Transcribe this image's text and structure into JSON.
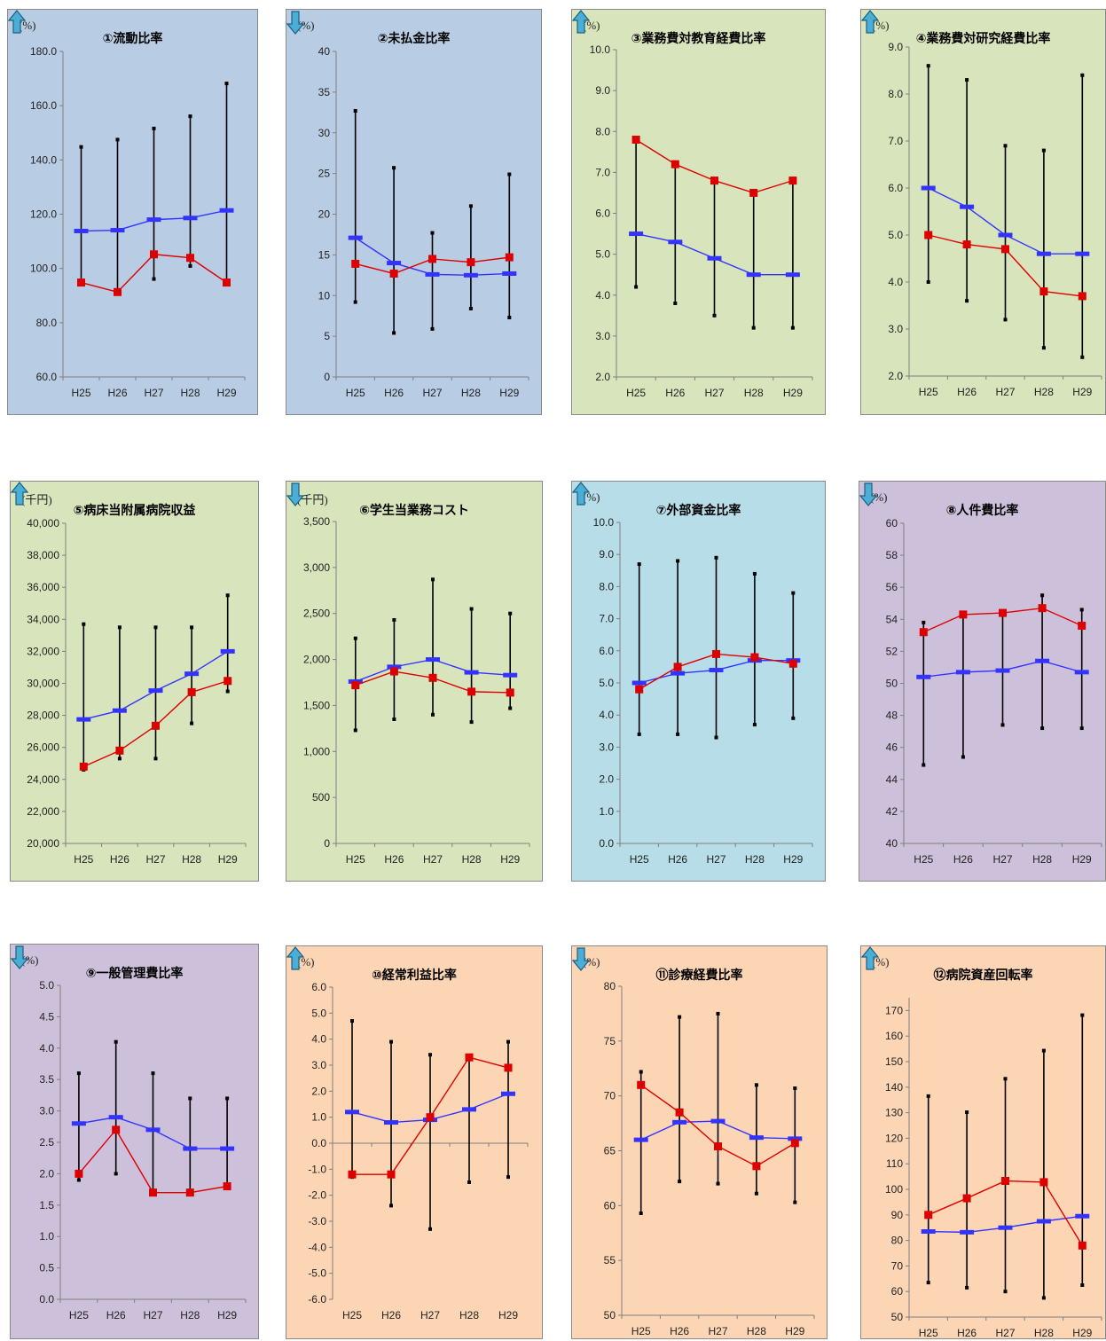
{
  "colors": {
    "blue_panel": "#b8cce4",
    "green_panel": "#d8e4bc",
    "cyan_panel": "#b7dde8",
    "purple_panel": "#ccc0da",
    "orange_panel": "#fcd5b4",
    "red_series": "#dd0000",
    "blue_series": "#3333ff",
    "range_line": "#000000",
    "arrow_fill": "#4aaed6"
  },
  "chart_data": [
    {
      "type": "line",
      "title": "①流動比率",
      "unit": "(%)",
      "arrow": "up",
      "bg": "blue",
      "categories": [
        "H25",
        "H26",
        "H27",
        "H28",
        "H29"
      ],
      "ylim": [
        60,
        180
      ],
      "ticks": [
        60,
        80,
        100,
        120,
        140,
        160,
        180
      ],
      "decimals": 1,
      "series": [
        {
          "color": "red",
          "values": [
            94.8,
            91.3,
            105.2,
            103.9,
            94.8
          ]
        },
        {
          "color": "blue",
          "values": [
            113.8,
            114.1,
            118.0,
            118.6,
            121.4
          ]
        }
      ],
      "ranges": [
        [
          94.8,
          144.8
        ],
        [
          91.3,
          147.5
        ],
        [
          96.1,
          151.6
        ],
        [
          100.9,
          156.1
        ],
        [
          94.8,
          168.2
        ]
      ]
    },
    {
      "type": "line",
      "title": "②未払金比率",
      "unit": "(%)",
      "arrow": "down",
      "bg": "blue",
      "categories": [
        "H25",
        "H26",
        "H27",
        "H28",
        "H29"
      ],
      "ylim": [
        0,
        40
      ],
      "ticks": [
        0,
        5,
        10,
        15,
        20,
        25,
        30,
        35,
        40
      ],
      "decimals": 0,
      "series": [
        {
          "color": "red",
          "values": [
            13.9,
            12.7,
            14.5,
            14.1,
            14.7
          ]
        },
        {
          "color": "blue",
          "values": [
            17.1,
            14.0,
            12.6,
            12.5,
            12.7
          ]
        }
      ],
      "ranges": [
        [
          9.2,
          32.7
        ],
        [
          5.4,
          25.7
        ],
        [
          5.9,
          17.7
        ],
        [
          8.4,
          21.0
        ],
        [
          7.3,
          24.9
        ]
      ]
    },
    {
      "type": "line",
      "title": "③業務費対教育経費比率",
      "unit": "(%)",
      "arrow": "up",
      "bg": "green",
      "categories": [
        "H25",
        "H26",
        "H27",
        "H28",
        "H29"
      ],
      "ylim": [
        2,
        10
      ],
      "ticks": [
        2,
        3,
        4,
        5,
        6,
        7,
        8,
        9,
        10
      ],
      "decimals": 1,
      "series": [
        {
          "color": "red",
          "values": [
            7.8,
            7.2,
            6.8,
            6.5,
            6.8
          ]
        },
        {
          "color": "blue",
          "values": [
            5.5,
            5.3,
            4.9,
            4.5,
            4.5
          ]
        }
      ],
      "ranges": [
        [
          4.2,
          7.8
        ],
        [
          3.8,
          7.2
        ],
        [
          3.5,
          6.8
        ],
        [
          3.2,
          6.5
        ],
        [
          3.2,
          6.8
        ]
      ]
    },
    {
      "type": "line",
      "title": "④業務費対研究経費比率",
      "unit": "(%)",
      "arrow": "up",
      "bg": "green",
      "categories": [
        "H25",
        "H26",
        "H27",
        "H28",
        "H29"
      ],
      "ylim": [
        2,
        9
      ],
      "ticks": [
        2,
        3,
        4,
        5,
        6,
        7,
        8,
        9
      ],
      "decimals": 1,
      "series": [
        {
          "color": "red",
          "values": [
            5.0,
            4.8,
            4.7,
            3.8,
            3.7
          ]
        },
        {
          "color": "blue",
          "values": [
            6.0,
            5.6,
            5.0,
            4.6,
            4.6
          ]
        }
      ],
      "ranges": [
        [
          4.0,
          8.6
        ],
        [
          3.6,
          8.3
        ],
        [
          3.2,
          6.9
        ],
        [
          2.6,
          6.8
        ],
        [
          2.4,
          8.4
        ]
      ]
    },
    {
      "type": "line",
      "title": "⑤病床当附属病院収益",
      "unit": "(千円)",
      "arrow": "up",
      "bg": "green",
      "categories": [
        "H25",
        "H26",
        "H27",
        "H28",
        "H29"
      ],
      "ylim": [
        20000,
        40000
      ],
      "ticks": [
        20000,
        22000,
        24000,
        26000,
        28000,
        30000,
        32000,
        34000,
        36000,
        38000,
        40000
      ],
      "decimals": 0,
      "series": [
        {
          "color": "red",
          "values": [
            24800,
            25800,
            27350,
            29450,
            30150
          ]
        },
        {
          "color": "blue",
          "values": [
            27750,
            28300,
            29550,
            30600,
            32000
          ]
        }
      ],
      "ranges": [
        [
          24600,
          33700
        ],
        [
          25300,
          33500
        ],
        [
          25300,
          33500
        ],
        [
          27500,
          33500
        ],
        [
          29500,
          35500
        ]
      ]
    },
    {
      "type": "line",
      "title": "⑥学生当業務コスト",
      "unit": "(千円)",
      "arrow": "down",
      "bg": "green",
      "categories": [
        "H25",
        "H26",
        "H27",
        "H28",
        "H29"
      ],
      "ylim": [
        0,
        3500
      ],
      "ticks": [
        0,
        500,
        1000,
        1500,
        2000,
        2500,
        3000,
        3500
      ],
      "decimals": 0,
      "series": [
        {
          "color": "red",
          "values": [
            1720,
            1870,
            1800,
            1650,
            1640
          ]
        },
        {
          "color": "blue",
          "values": [
            1760,
            1920,
            2000,
            1860,
            1830
          ]
        }
      ],
      "ranges": [
        [
          1230,
          2230
        ],
        [
          1350,
          2430
        ],
        [
          1400,
          2870
        ],
        [
          1320,
          2550
        ],
        [
          1470,
          2500
        ]
      ]
    },
    {
      "type": "line",
      "title": "⑦外部資金比率",
      "unit": "(%)",
      "arrow": "up",
      "bg": "cyan",
      "categories": [
        "H25",
        "H26",
        "H27",
        "H28",
        "H29"
      ],
      "ylim": [
        0,
        10
      ],
      "ticks": [
        0,
        1,
        2,
        3,
        4,
        5,
        6,
        7,
        8,
        9,
        10
      ],
      "decimals": 1,
      "series": [
        {
          "color": "red",
          "values": [
            4.8,
            5.5,
            5.9,
            5.8,
            5.6
          ]
        },
        {
          "color": "blue",
          "values": [
            5.0,
            5.3,
            5.4,
            5.7,
            5.7
          ]
        }
      ],
      "ranges": [
        [
          3.4,
          8.7
        ],
        [
          3.4,
          8.8
        ],
        [
          3.3,
          8.9
        ],
        [
          3.7,
          8.4
        ],
        [
          3.9,
          7.8
        ]
      ]
    },
    {
      "type": "line",
      "title": "⑧人件費比率",
      "unit": "(%)",
      "arrow": "down",
      "bg": "purple",
      "categories": [
        "H25",
        "H26",
        "H27",
        "H28",
        "H29"
      ],
      "ylim": [
        40,
        60
      ],
      "ticks": [
        40,
        42,
        44,
        46,
        48,
        50,
        52,
        54,
        56,
        58,
        60
      ],
      "decimals": 0,
      "series": [
        {
          "color": "red",
          "values": [
            53.2,
            54.3,
            54.4,
            54.7,
            53.6
          ]
        },
        {
          "color": "blue",
          "values": [
            50.4,
            50.7,
            50.8,
            51.4,
            50.7
          ]
        }
      ],
      "ranges": [
        [
          44.9,
          53.8
        ],
        [
          45.4,
          54.4
        ],
        [
          47.4,
          54.4
        ],
        [
          47.2,
          55.5
        ],
        [
          47.2,
          54.6
        ]
      ]
    },
    {
      "type": "line",
      "title": "⑨一般管理費比率",
      "unit": "(%)",
      "arrow": "down",
      "bg": "purple",
      "categories": [
        "H25",
        "H26",
        "H27",
        "H28",
        "H29"
      ],
      "ylim": [
        0,
        5
      ],
      "ticks": [
        0,
        0.5,
        1,
        1.5,
        2,
        2.5,
        3,
        3.5,
        4,
        4.5,
        5
      ],
      "decimals": 1,
      "series": [
        {
          "color": "red",
          "values": [
            2.0,
            2.7,
            1.7,
            1.7,
            1.8
          ]
        },
        {
          "color": "blue",
          "values": [
            2.8,
            2.9,
            2.7,
            2.4,
            2.4
          ]
        }
      ],
      "ranges": [
        [
          1.9,
          3.6
        ],
        [
          2.0,
          4.1
        ],
        [
          1.7,
          3.6
        ],
        [
          1.7,
          3.2
        ],
        [
          1.8,
          3.2
        ]
      ]
    },
    {
      "type": "line",
      "title": "⑩経常利益比率",
      "unit": "(%)",
      "arrow": "up",
      "bg": "orange",
      "categories": [
        "H25",
        "H26",
        "H27",
        "H28",
        "H29"
      ],
      "ylim": [
        -6,
        6
      ],
      "ticks": [
        -6,
        -5,
        -4,
        -3,
        -2,
        -1,
        0,
        1,
        2,
        3,
        4,
        5,
        6
      ],
      "decimals": 1,
      "xaxis_at_zero": true,
      "series": [
        {
          "color": "red",
          "values": [
            -1.2,
            -1.2,
            1.0,
            3.3,
            2.9
          ]
        },
        {
          "color": "blue",
          "values": [
            1.2,
            0.8,
            0.9,
            1.3,
            1.9
          ]
        }
      ],
      "ranges": [
        [
          -1.3,
          4.7
        ],
        [
          -2.4,
          3.9
        ],
        [
          -3.3,
          3.4
        ],
        [
          -1.5,
          3.3
        ],
        [
          -1.3,
          3.9
        ]
      ]
    },
    {
      "type": "line",
      "title": "⑪診療経費比率",
      "unit": "(%)",
      "arrow": "down",
      "bg": "orange",
      "categories": [
        "H25",
        "H26",
        "H27",
        "H28",
        "H29"
      ],
      "ylim": [
        50,
        80
      ],
      "ticks": [
        50,
        55,
        60,
        65,
        70,
        75,
        80
      ],
      "decimals": 0,
      "series": [
        {
          "color": "red",
          "values": [
            71.0,
            68.5,
            65.4,
            63.6,
            65.7
          ]
        },
        {
          "color": "blue",
          "values": [
            66.0,
            67.6,
            67.7,
            66.2,
            66.1
          ]
        }
      ],
      "ranges": [
        [
          59.3,
          72.2
        ],
        [
          62.2,
          77.2
        ],
        [
          62.0,
          77.5
        ],
        [
          61.1,
          71.0
        ],
        [
          60.3,
          70.7
        ]
      ]
    },
    {
      "type": "line",
      "title": "⑫病院資産回転率",
      "unit": "(%)",
      "arrow": "up",
      "bg": "orange",
      "categories": [
        "H25",
        "H26",
        "H27",
        "H28",
        "H29"
      ],
      "ylim": [
        50,
        175
      ],
      "ticks": [
        50,
        60,
        70,
        80,
        90,
        100,
        110,
        120,
        130,
        140,
        150,
        160,
        170
      ],
      "decimals": 0,
      "series": [
        {
          "color": "red",
          "values": [
            90,
            96.5,
            103.3,
            102.8,
            78
          ]
        },
        {
          "color": "blue",
          "values": [
            83.5,
            83.2,
            85,
            87.5,
            89.5
          ]
        }
      ],
      "ranges": [
        [
          63.5,
          136.5
        ],
        [
          61.5,
          130.2
        ],
        [
          60,
          143.3
        ],
        [
          57.5,
          154.3
        ],
        [
          62.5,
          168.2
        ]
      ]
    }
  ]
}
